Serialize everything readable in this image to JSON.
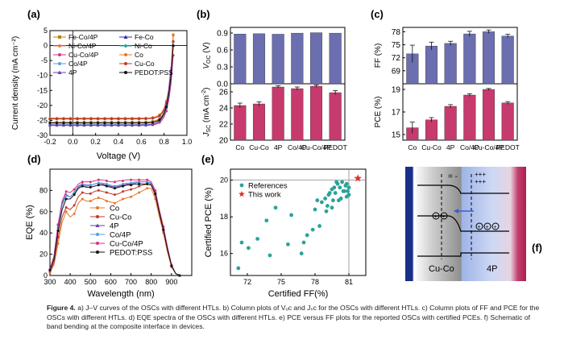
{
  "figure": {
    "panels": {
      "a": {
        "letter": "(a)"
      },
      "b": {
        "letter": "(b)"
      },
      "c": {
        "letter": "(c)"
      },
      "d": {
        "letter": "(d)"
      },
      "e": {
        "letter": "(e)"
      },
      "f": {
        "letter": "(f)"
      }
    }
  },
  "chart_data": [
    {
      "id": "a",
      "type": "line",
      "xlabel": "Voltage (V)",
      "ylabel": "Current density (mA cm⁻²)",
      "xlim": [
        -0.2,
        1.0
      ],
      "ylim": [
        -30,
        5
      ],
      "xticks": [
        "-0.2",
        "0.0",
        "0.2",
        "0.4",
        "0.6",
        "0.8",
        "1.0"
      ],
      "yticks": [
        "5",
        "0",
        "-5",
        "-10",
        "-15",
        "-20",
        "-25",
        "-30"
      ],
      "series": [
        {
          "name": "Fe-Co/4P",
          "color": "#b8860b",
          "marker": "square",
          "jsc": -25.6,
          "voc": 0.875
        },
        {
          "name": "Fe-Co",
          "color": "#2b2bb8",
          "marker": "triangle",
          "jsc": -24.3,
          "voc": 0.88
        },
        {
          "name": "Ni-Co/4P",
          "color": "#e07a5f",
          "marker": "circle",
          "jsc": -25.8,
          "voc": 0.878
        },
        {
          "name": "Ni-Co",
          "color": "#2aa198",
          "marker": "diamond",
          "jsc": -24.5,
          "voc": 0.88
        },
        {
          "name": "Cu-Co/4P",
          "color": "#d63384",
          "marker": "circle",
          "jsc": -26.7,
          "voc": 0.885
        },
        {
          "name": "Co",
          "color": "#e8792b",
          "marker": "circle",
          "jsc": -24.3,
          "voc": 0.875
        },
        {
          "name": "Co/4P",
          "color": "#4fa3d9",
          "marker": "circle",
          "jsc": -26.4,
          "voc": 0.88
        },
        {
          "name": "Cu-Co",
          "color": "#c0392b",
          "marker": "circle",
          "jsc": -24.5,
          "voc": 0.878
        },
        {
          "name": "4P",
          "color": "#6a3fb5",
          "marker": "triangle",
          "jsc": -26.6,
          "voc": 0.872
        },
        {
          "name": "PEDOT:PSS",
          "color": "#111111",
          "marker": "circle",
          "jsc": -25.9,
          "voc": 0.88
        }
      ]
    },
    {
      "id": "b",
      "type": "bar",
      "categories": [
        "Co",
        "Cu-Co",
        "4P",
        "Co/4P",
        "Cu-Co/4P",
        "PEDOT"
      ],
      "top": {
        "ylabel": "V_OC (V)",
        "yticks": [
          "0.9",
          "0.6",
          "0.3",
          "0.0"
        ],
        "ylim": [
          0,
          1.0
        ],
        "values": [
          0.882,
          0.888,
          0.879,
          0.898,
          0.906,
          0.898
        ],
        "color": "#6b6fb0"
      },
      "bottom": {
        "ylabel": "J_SC (mA cm⁻²)",
        "yticks": [
          "26",
          "24",
          "22",
          "20"
        ],
        "ylim": [
          20,
          27
        ],
        "values": [
          24.3,
          24.5,
          26.6,
          26.4,
          26.7,
          25.9
        ],
        "errors": [
          0.3,
          0.25,
          0.15,
          0.2,
          0.15,
          0.25
        ],
        "color": "#c73a6e"
      }
    },
    {
      "id": "c",
      "type": "bar",
      "categories": [
        "Co",
        "Cu-Co",
        "4P",
        "Co/4P",
        "Cu-Co/4P",
        "PEDOT"
      ],
      "top": {
        "ylabel": "FF (%)",
        "yticks": [
          "78",
          "75",
          "72",
          "69"
        ],
        "ylim": [
          66,
          79
        ],
        "values": [
          72.9,
          74.7,
          75.3,
          77.5,
          78.0,
          77.0
        ],
        "errors": [
          2.0,
          0.9,
          0.5,
          0.6,
          0.4,
          0.4
        ],
        "color": "#6b6fb0"
      },
      "bottom": {
        "ylabel": "PCE (%)",
        "yticks": [
          "19",
          "17",
          "15"
        ],
        "ylim": [
          14.5,
          19.5
        ],
        "values": [
          15.6,
          16.3,
          17.5,
          18.5,
          19.0,
          17.8
        ],
        "errors": [
          0.5,
          0.2,
          0.15,
          0.12,
          0.08,
          0.12
        ],
        "color": "#c73a6e"
      }
    },
    {
      "id": "d",
      "type": "line",
      "xlabel": "Wavelength (nm)",
      "ylabel": "EQE (%)",
      "xlim": [
        300,
        1000
      ],
      "ylim": [
        0,
        100
      ],
      "xticks": [
        "300",
        "400",
        "500",
        "600",
        "700",
        "800",
        "900"
      ],
      "yticks": [
        "80",
        "60",
        "40",
        "20",
        "0"
      ],
      "wavelengths": [
        300,
        320,
        340,
        360,
        380,
        400,
        420,
        440,
        460,
        480,
        500,
        520,
        540,
        560,
        580,
        600,
        620,
        640,
        660,
        680,
        700,
        720,
        740,
        760,
        780,
        800,
        820,
        840,
        860,
        880,
        900,
        920,
        940
      ],
      "series": [
        {
          "name": "Co",
          "color": "#e8792b",
          "marker": "circle",
          "values": [
            3,
            10,
            30,
            50,
            60,
            55,
            58,
            68,
            72,
            70,
            70,
            72,
            73,
            72,
            70,
            69,
            68,
            70,
            72,
            73,
            74,
            76,
            78,
            80,
            82,
            82,
            72,
            55,
            40,
            22,
            8,
            2,
            0
          ]
        },
        {
          "name": "Cu-Co",
          "color": "#c0392b",
          "marker": "circle",
          "values": [
            4,
            12,
            36,
            55,
            64,
            62,
            66,
            74,
            78,
            77,
            77,
            79,
            80,
            79,
            78,
            77,
            76,
            77,
            79,
            80,
            81,
            82,
            84,
            85,
            86,
            85,
            76,
            58,
            42,
            24,
            9,
            2,
            0
          ]
        },
        {
          "name": "4P",
          "color": "#6a3fb5",
          "marker": "triangle",
          "values": [
            6,
            18,
            48,
            68,
            76,
            74,
            78,
            84,
            86,
            85,
            85,
            86,
            87,
            86,
            85,
            84,
            83,
            84,
            85,
            86,
            86,
            87,
            88,
            88,
            88,
            86,
            78,
            60,
            44,
            26,
            10,
            2,
            0
          ]
        },
        {
          "name": "Co/4P",
          "color": "#4fa3d9",
          "marker": "circle",
          "values": [
            5,
            16,
            45,
            66,
            75,
            74,
            78,
            83,
            85,
            84,
            85,
            86,
            87,
            87,
            86,
            85,
            84,
            85,
            86,
            87,
            87,
            88,
            88,
            88,
            88,
            87,
            79,
            61,
            45,
            26,
            10,
            2,
            0
          ]
        },
        {
          "name": "Cu-Co/4P",
          "color": "#d63384",
          "marker": "circle",
          "values": [
            6,
            18,
            48,
            70,
            79,
            78,
            81,
            86,
            88,
            88,
            88,
            89,
            90,
            90,
            89,
            88,
            88,
            89,
            89,
            90,
            90,
            90,
            90,
            90,
            90,
            88,
            80,
            62,
            46,
            27,
            10,
            2,
            0
          ]
        },
        {
          "name": "PEDOT:PSS",
          "color": "#111111",
          "marker": "circle",
          "values": [
            5,
            15,
            42,
            62,
            72,
            72,
            76,
            82,
            84,
            83,
            83,
            84,
            85,
            85,
            84,
            83,
            82,
            83,
            84,
            85,
            85,
            86,
            86,
            86,
            86,
            85,
            77,
            59,
            43,
            25,
            9,
            2,
            0
          ]
        }
      ]
    },
    {
      "id": "e",
      "type": "scatter",
      "xlabel": "Certified FF(%)",
      "ylabel": "Certified PCE (%)",
      "xlim": [
        70.5,
        82.5
      ],
      "ylim": [
        14.8,
        20.6
      ],
      "xticks": [
        "72",
        "75",
        "78",
        "81"
      ],
      "yticks": [
        "20",
        "18",
        "16"
      ],
      "series": [
        {
          "name": "References",
          "color": "#2aa39a",
          "marker": "circle",
          "points": [
            [
              71.2,
              15.2
            ],
            [
              71.5,
              16.6
            ],
            [
              72.1,
              16.3
            ],
            [
              72.9,
              16.8
            ],
            [
              73.7,
              17.8
            ],
            [
              74.0,
              15.9
            ],
            [
              74.5,
              18.5
            ],
            [
              75.6,
              16.5
            ],
            [
              75.9,
              18.1
            ],
            [
              76.8,
              16.0
            ],
            [
              77.0,
              16.6
            ],
            [
              77.3,
              17.0
            ],
            [
              77.8,
              17.3
            ],
            [
              78.0,
              18.4
            ],
            [
              78.2,
              18.9
            ],
            [
              78.4,
              17.5
            ],
            [
              78.6,
              18.8
            ],
            [
              78.9,
              19.0
            ],
            [
              79.0,
              18.3
            ],
            [
              79.1,
              18.6
            ],
            [
              79.2,
              19.2
            ],
            [
              79.3,
              19.3
            ],
            [
              79.5,
              18.5
            ],
            [
              79.5,
              19.5
            ],
            [
              79.6,
              18.9
            ],
            [
              79.7,
              19.6
            ],
            [
              79.8,
              19.3
            ],
            [
              79.9,
              19.9
            ],
            [
              80.0,
              19.8
            ],
            [
              80.1,
              18.9
            ],
            [
              80.2,
              19.6
            ],
            [
              80.3,
              19.0
            ],
            [
              80.4,
              19.9
            ],
            [
              80.5,
              19.4
            ],
            [
              80.6,
              19.4
            ],
            [
              80.7,
              19.7
            ],
            [
              80.8,
              19.8
            ],
            [
              80.8,
              19.1
            ],
            [
              80.9,
              19.4
            ],
            [
              81.0,
              19.2
            ],
            [
              81.0,
              19.6
            ]
          ]
        },
        {
          "name": "This work",
          "color": "#e03131",
          "marker": "star",
          "points": [
            [
              81.8,
              20.1
            ]
          ]
        }
      ],
      "reference_lines": {
        "x": 81.0,
        "y": 20.0
      }
    }
  ],
  "schematic": {
    "label_left": "Cu-Co",
    "label_right": "4P",
    "holes": "+++",
    "dashes": "= -"
  },
  "caption": {
    "label": "Figure 4.",
    "text": "a) J–V curves of the OSCs with different HTLs. b) Column plots of Vₒc and Jₛc for the OSCs with different HTLs. c) Column plots of FF and PCE for the OSCs with different HTLs. d) EQE spectra of the OSCs with different HTLs. e) PCE versus FF plots for the reported OSCs with certified PCEs. f) Schematic of band bending at the composite interface in devices."
  }
}
